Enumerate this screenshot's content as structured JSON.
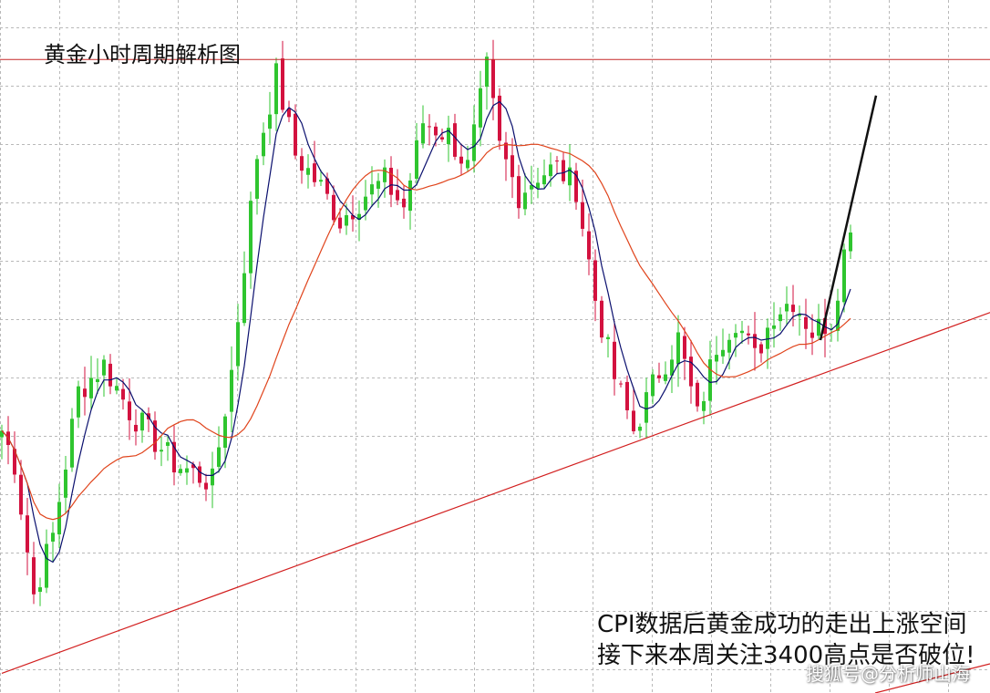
{
  "title": "黄金小时周期解析图",
  "annotation": {
    "line1": "CPI数据后黄金成功的走出上涨空间",
    "line2": "接下来本周关注3400高点是否破位!"
  },
  "watermark": "搜狐号@分析师山海",
  "colors": {
    "background": "#ffffff",
    "grid": "#b9b9b9",
    "bull_candle": "#2fc52f",
    "bear_candle": "#d3123f",
    "ma_fast": "#0a0f6e",
    "ma_slow": "#e0441c",
    "trendline": "#d21f1f",
    "resistance": "#c62828",
    "projection": "#111111"
  },
  "chart_data": {
    "type": "candlestick",
    "title": "黄金小时周期解析图",
    "xlabel": "",
    "ylabel": "",
    "grid": true,
    "legend": "none",
    "ylim": [
      0,
      100
    ],
    "anchors": [
      [
        0,
        40
      ],
      [
        2,
        35
      ],
      [
        5,
        15
      ],
      [
        8,
        24
      ],
      [
        12,
        46
      ],
      [
        16,
        50
      ],
      [
        20,
        43
      ],
      [
        27,
        35
      ],
      [
        33,
        32
      ],
      [
        36,
        49
      ],
      [
        40,
        82
      ],
      [
        43,
        94
      ],
      [
        46,
        82
      ],
      [
        50,
        77
      ],
      [
        53,
        72
      ],
      [
        57,
        76
      ],
      [
        60,
        78
      ],
      [
        63,
        74
      ],
      [
        66,
        87
      ],
      [
        70,
        85
      ],
      [
        73,
        80
      ],
      [
        76,
        95
      ],
      [
        78,
        83
      ],
      [
        81,
        76
      ],
      [
        84,
        79
      ],
      [
        87,
        80
      ],
      [
        90,
        77
      ],
      [
        93,
        60
      ],
      [
        96,
        48
      ],
      [
        99,
        40
      ],
      [
        103,
        49
      ],
      [
        106,
        54
      ],
      [
        109,
        42
      ],
      [
        112,
        53
      ],
      [
        115,
        57
      ],
      [
        118,
        51
      ],
      [
        121,
        58
      ],
      [
        124,
        60
      ],
      [
        127,
        55
      ],
      [
        130,
        57
      ],
      [
        133,
        72
      ]
    ],
    "series": [
      {
        "name": "",
        "kind": "moving-average",
        "period": 5
      },
      {
        "name": "",
        "kind": "moving-average",
        "period": 20
      }
    ],
    "resistance_level": 96.5,
    "trendline": {
      "from": [
        0,
        3
      ],
      "to": [
        155,
        58
      ]
    },
    "projection": {
      "from": [
        130,
        60
      ],
      "to": [
        137,
        91
      ]
    }
  }
}
